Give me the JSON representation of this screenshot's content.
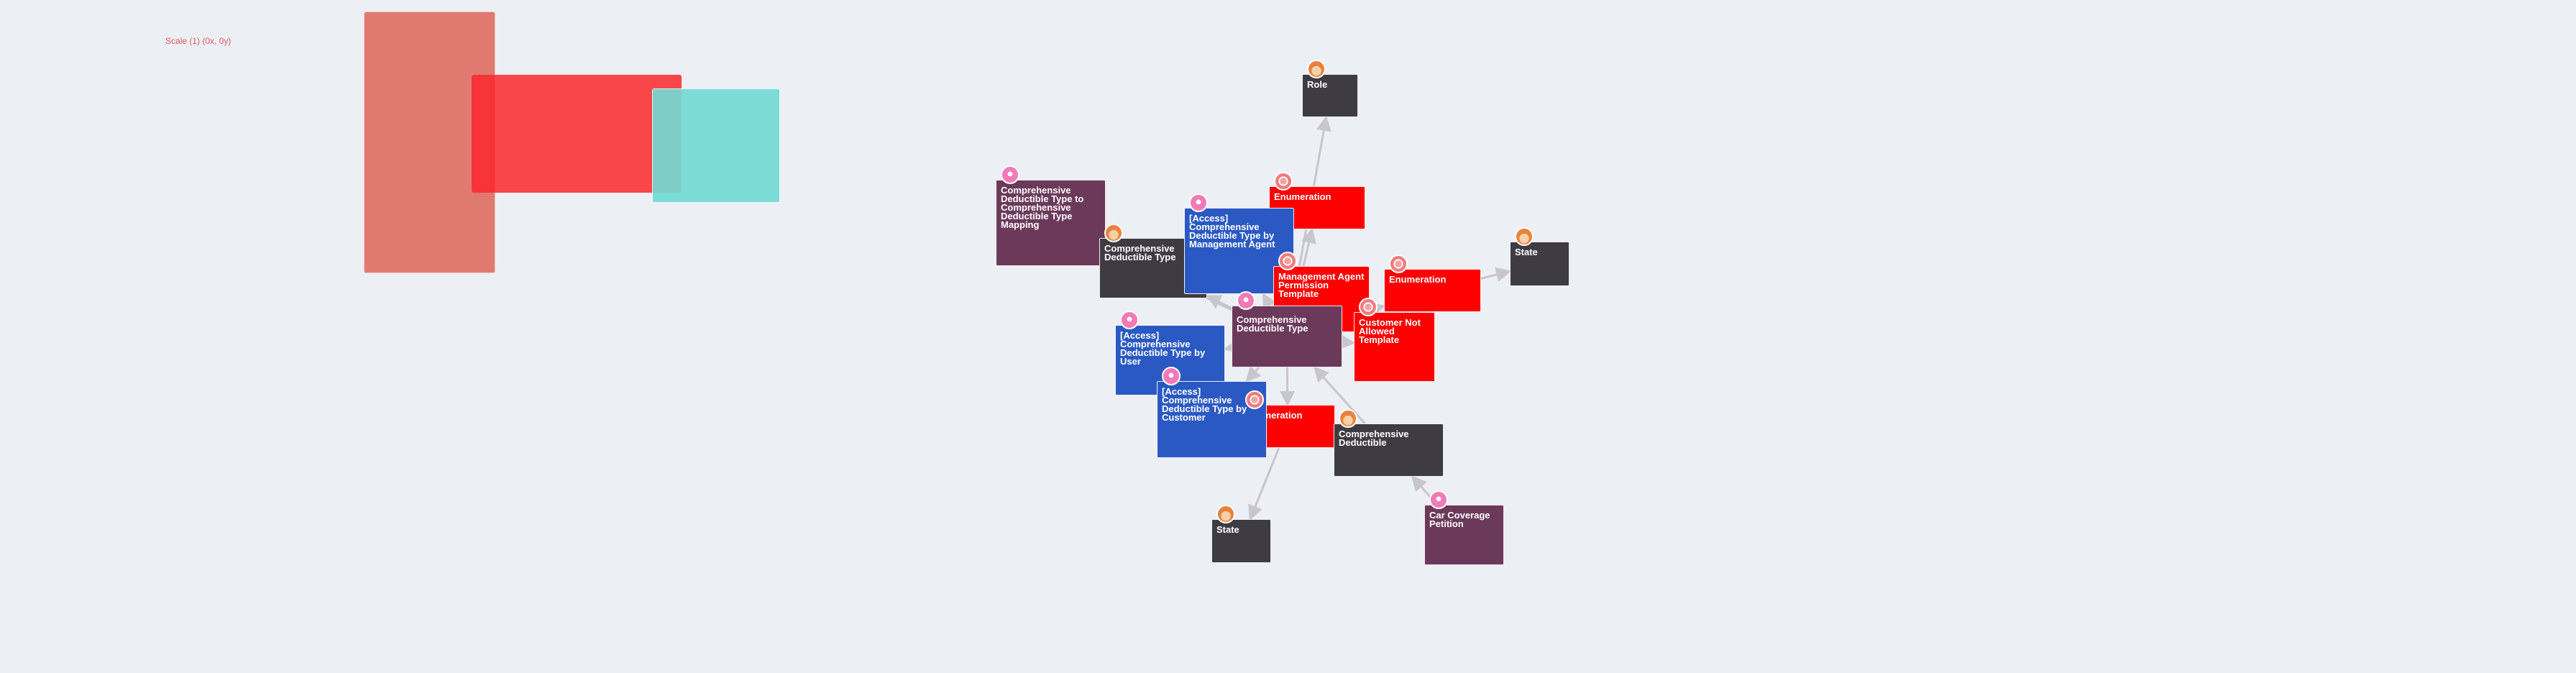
{
  "scale_label": "Scale (1) (0x, 0y)",
  "colors": {
    "background": "#eceff4",
    "edge": "#c9c5cc",
    "legend_a": "#e07a70",
    "legend_b": "#f54447",
    "legend_c": "#73d9d1"
  },
  "legend": [
    {
      "name": "legend-rect-large-salmon",
      "color": "#e07a70"
    },
    {
      "name": "legend-rect-red",
      "color": "#f54447"
    },
    {
      "name": "legend-rect-teal",
      "color": "#73d9d1"
    }
  ],
  "nodes": [
    {
      "id": "role",
      "label": "Role",
      "color": "#3e3c42",
      "icon": "person-icon"
    },
    {
      "id": "enum1",
      "label": "Enumeration",
      "color": "#fe0000",
      "icon": "stack-icon"
    },
    {
      "id": "mapping",
      "label": "Comprehensive Deductible Type to Comprehensive Deductible Type Mapping",
      "color": "#6b3a5a",
      "icon": "pin-icon"
    },
    {
      "id": "cdt_dark",
      "label": "Comprehensive Deductible Type",
      "color": "#3e3c42",
      "icon": "person-icon"
    },
    {
      "id": "access_mgmt",
      "label": "[Access] Comprehensive Deductible Type by Management Agent",
      "color": "#2b59c3",
      "icon": "pin-icon"
    },
    {
      "id": "state1",
      "label": "State",
      "color": "#3e3c42",
      "icon": "person-icon"
    },
    {
      "id": "enum2",
      "label": "Enumeration",
      "color": "#fe0000",
      "icon": "stack-icon"
    },
    {
      "id": "mapt",
      "label": "Management Agent Permission Template",
      "color": "#fe0000",
      "icon": "stack-icon"
    },
    {
      "id": "cdt_main",
      "label": "Comprehensive Deductible Type",
      "color": "#6b3a5a",
      "icon": "pin-icon"
    },
    {
      "id": "cnat",
      "label": "Customer Not Allowed Template",
      "color": "#fe0000",
      "icon": "stack-icon"
    },
    {
      "id": "access_user",
      "label": "[Access] Comprehensive Deductible Type by User",
      "color": "#2b59c3",
      "icon": "pin-icon"
    },
    {
      "id": "access_cust",
      "label": "[Access] Comprehensive Deductible Type by Customer",
      "color": "#2b59c3",
      "icon": "pin-icon"
    },
    {
      "id": "enum3",
      "label": "Enumeration",
      "color": "#fe0000",
      "icon": "stack-icon"
    },
    {
      "id": "cd",
      "label": "Comprehensive Deductible",
      "color": "#3e3c42",
      "icon": "person-icon"
    },
    {
      "id": "state2",
      "label": "State",
      "color": "#3e3c42",
      "icon": "person-icon"
    },
    {
      "id": "ccp",
      "label": "Car Coverage Petition",
      "color": "#6b3a5a",
      "icon": "pin-icon"
    }
  ],
  "edges": [
    {
      "from": "cdt_main",
      "to": "role"
    },
    {
      "from": "cdt_main",
      "to": "enum1"
    },
    {
      "from": "cdt_main",
      "to": "mapping"
    },
    {
      "from": "cdt_main",
      "to": "cdt_dark"
    },
    {
      "from": "cdt_main",
      "to": "access_mgmt"
    },
    {
      "from": "cdt_main",
      "to": "enum2"
    },
    {
      "from": "enum2",
      "to": "state1"
    },
    {
      "from": "cdt_main",
      "to": "mapt"
    },
    {
      "from": "cdt_main",
      "to": "cnat"
    },
    {
      "from": "cdt_main",
      "to": "access_user"
    },
    {
      "from": "cdt_main",
      "to": "access_cust"
    },
    {
      "from": "cdt_main",
      "to": "enum3"
    },
    {
      "from": "cd",
      "to": "cdt_main"
    },
    {
      "from": "enum3",
      "to": "state2"
    },
    {
      "from": "ccp",
      "to": "cd"
    }
  ]
}
